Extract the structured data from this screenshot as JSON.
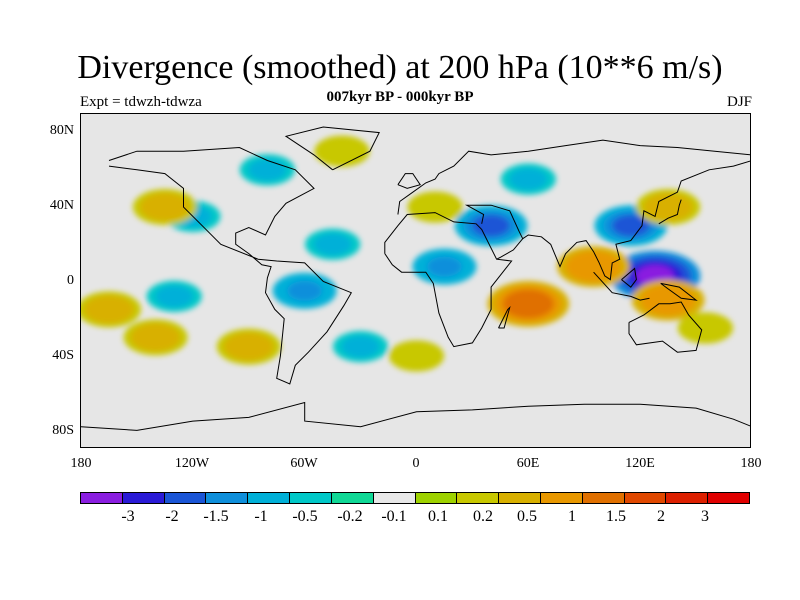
{
  "title": "Divergence (smoothed) at 200 hPa (10**6 m/s)",
  "subtitle": "007kyr BP - 000kyr BP",
  "left_label": "Expt = tdwzh-tdwza",
  "right_label": "DJF",
  "lat_ticks": [
    "80N",
    "40N",
    "0",
    "40S",
    "80S"
  ],
  "lon_ticks": [
    "180",
    "120W",
    "60W",
    "0",
    "60E",
    "120E",
    "180"
  ],
  "colorbar": {
    "colors": [
      "#8a1ee0",
      "#2a1ad6",
      "#1a55d6",
      "#0f8fdb",
      "#00b0d8",
      "#00c8c8",
      "#10d896",
      "#e8e8e8",
      "#9ed200",
      "#c8c800",
      "#d8b000",
      "#e89800",
      "#e07000",
      "#e04800",
      "#dc2000",
      "#e00000"
    ],
    "labels": [
      "-3",
      "-2",
      "-1.5",
      "-1",
      "-0.5",
      "-0.2",
      "-0.1",
      "0.1",
      "0.2",
      "0.5",
      "1",
      "1.5",
      "2",
      "3"
    ]
  },
  "chart_data": {
    "type": "heatmap",
    "title": "Divergence (smoothed) at 200 hPa (10**6 m/s)",
    "subtitle": "007kyr BP - 000kyr BP",
    "experiment": "Expt = tdwzh-tdwza",
    "season": "DJF",
    "x_range": [
      -180,
      180
    ],
    "y_range": [
      -90,
      90
    ],
    "contour_levels": [
      -3,
      -2,
      -1.5,
      -1,
      -0.5,
      -0.2,
      -0.1,
      0.1,
      0.2,
      0.5,
      1,
      1.5,
      2,
      3
    ],
    "blobs": [
      {
        "lon": 128,
        "lat": 3,
        "value": -3
      },
      {
        "lon": 115,
        "lat": 30,
        "value": -1.5
      },
      {
        "lon": 40,
        "lat": 30,
        "value": -1.5
      },
      {
        "lon": 15,
        "lat": 8,
        "value": -1
      },
      {
        "lon": -45,
        "lat": 20,
        "value": -0.5
      },
      {
        "lon": -130,
        "lat": -8,
        "value": -0.5
      },
      {
        "lon": -120,
        "lat": 35,
        "value": -0.5
      },
      {
        "lon": -60,
        "lat": -5,
        "value": -1
      },
      {
        "lon": -80,
        "lat": 60,
        "value": -0.5
      },
      {
        "lon": 60,
        "lat": 55,
        "value": -0.5
      },
      {
        "lon": -30,
        "lat": -35,
        "value": -0.5
      },
      {
        "lon": 60,
        "lat": -12,
        "value": 2
      },
      {
        "lon": 95,
        "lat": 8,
        "value": 1.5
      },
      {
        "lon": 135,
        "lat": -10,
        "value": 1.5
      },
      {
        "lon": 135,
        "lat": 40,
        "value": 1
      },
      {
        "lon": -135,
        "lat": 40,
        "value": 1
      },
      {
        "lon": -165,
        "lat": -15,
        "value": 1
      },
      {
        "lon": -140,
        "lat": -30,
        "value": 1
      },
      {
        "lon": -90,
        "lat": -35,
        "value": 1
      },
      {
        "lon": 10,
        "lat": 40,
        "value": 0.5
      },
      {
        "lon": -40,
        "lat": 70,
        "value": 0.5
      },
      {
        "lon": 0,
        "lat": -40,
        "value": 0.5
      },
      {
        "lon": 155,
        "lat": -25,
        "value": 0.5
      }
    ]
  }
}
